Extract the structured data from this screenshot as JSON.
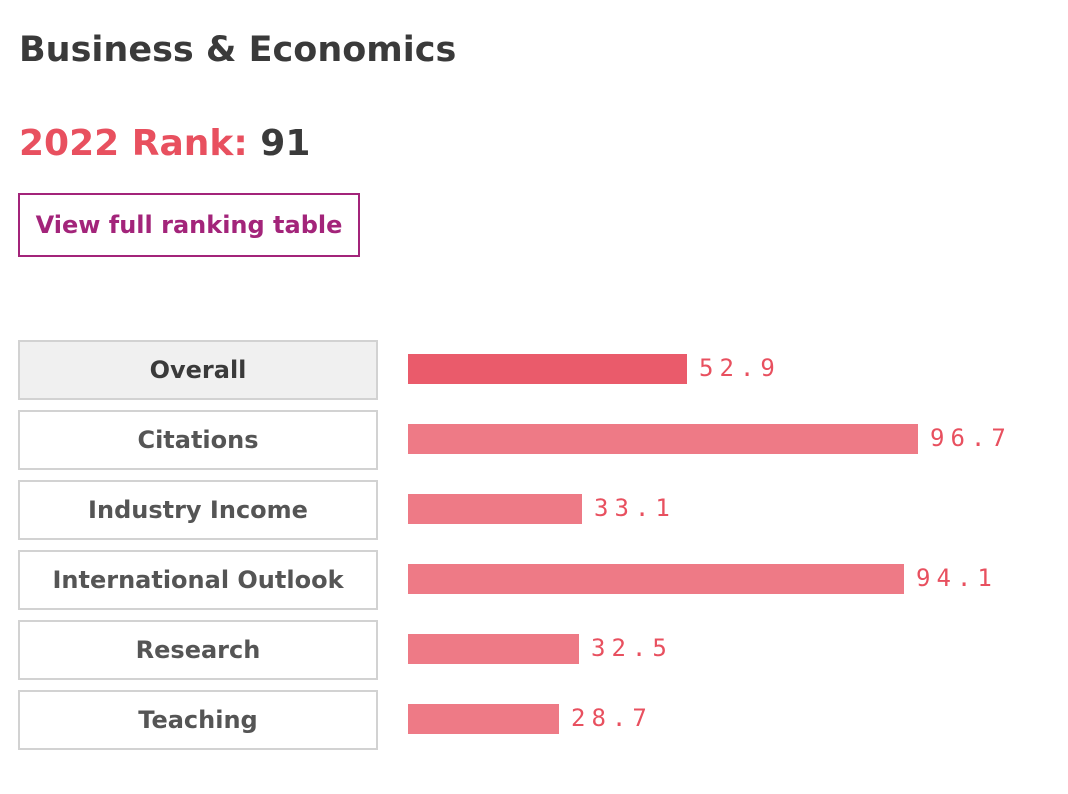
{
  "subject": {
    "title": "Business & Economics"
  },
  "rank": {
    "label": "2022 Rank:",
    "value": "91"
  },
  "view_button": {
    "label": "View full ranking table"
  },
  "colors": {
    "accent": "#e8505f",
    "bar_active": "#ea5b6b",
    "bar": "#ee7a86",
    "button": "#a3247a"
  },
  "chart_data": {
    "type": "bar",
    "orientation": "horizontal",
    "categories": [
      "Overall",
      "Citations",
      "Industry Income",
      "International Outlook",
      "Research",
      "Teaching"
    ],
    "values": [
      52.9,
      96.7,
      33.1,
      94.1,
      32.5,
      28.7
    ],
    "value_labels": [
      "52.9",
      "96.7",
      "33.1",
      "94.1",
      "32.5",
      "28.7"
    ],
    "xlim": [
      0,
      100
    ],
    "active_category": "Overall",
    "grid": false
  }
}
